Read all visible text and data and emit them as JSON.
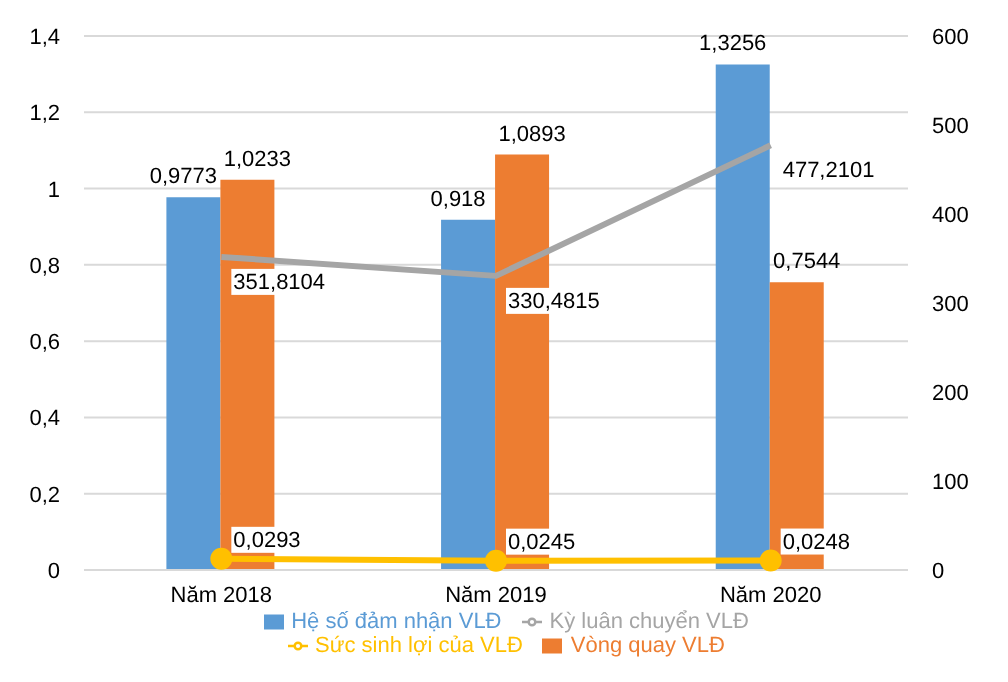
{
  "chart_data": {
    "type": "bar",
    "categories": [
      "Năm 2018",
      "Năm 2019",
      "Năm 2020"
    ],
    "series": [
      {
        "name": "Hệ số đảm nhận VLĐ",
        "color": "#5b9bd5",
        "values": [
          0.9773,
          0.918,
          1.3256
        ],
        "value_labels": [
          "0,9773",
          "0,918",
          "1,3256"
        ]
      },
      {
        "name": "Vòng quay VLĐ",
        "color": "#ed7d31",
        "values": [
          1.0233,
          1.0893,
          0.7544
        ],
        "value_labels": [
          "1,0233",
          "1,0893",
          "0,7544"
        ]
      },
      {
        "name": "Kỳ luân chuyển VLĐ",
        "type": "line",
        "axis": "y2",
        "color": "#a5a5a5",
        "marker": "none",
        "values": [
          351.8104,
          330.4815,
          477.2101
        ],
        "value_labels": [
          "351,8104",
          "330,4815",
          "477,2101"
        ]
      },
      {
        "name": "Sức sinh lợi của VLĐ",
        "type": "line",
        "color": "#ffc000",
        "marker": "circle",
        "values": [
          0.0293,
          0.0245,
          0.0248
        ],
        "value_labels": [
          "0,0293",
          "0,0245",
          "0,0248"
        ]
      }
    ],
    "ylim": [
      0,
      1.4
    ],
    "yticks": [
      0,
      {
        "value": 0.2,
        "label": "0,2"
      },
      {
        "value": 0.4,
        "label": "0,4"
      },
      {
        "value": 0.6,
        "label": "0,6"
      },
      {
        "value": 0.8,
        "label": "0,8"
      },
      1,
      {
        "value": 1.2,
        "label": "1,2"
      },
      {
        "value": 1.4,
        "label": "1,4"
      }
    ],
    "y2lim": [
      0,
      600
    ],
    "y2ticks": [
      0,
      100,
      200,
      300,
      400,
      500,
      600
    ],
    "grid": "y",
    "legend": "bottom"
  }
}
